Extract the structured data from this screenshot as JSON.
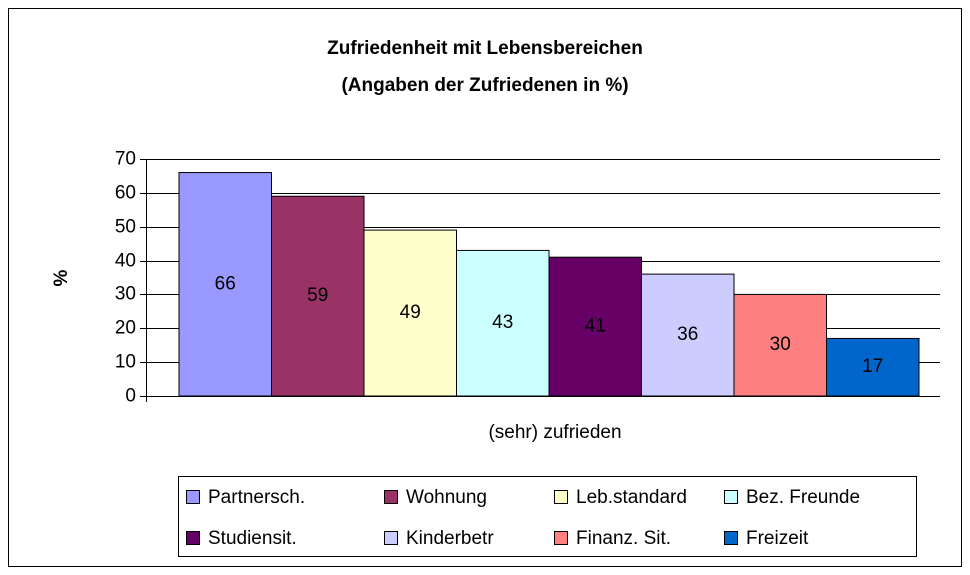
{
  "chart_data": {
    "type": "bar",
    "title": "Zufriedenheit mit Lebensbereichen",
    "subtitle": "(Angaben der Zufriedenen in %)",
    "y_label": "%",
    "categories": [
      "(sehr) zufrieden"
    ],
    "series": [
      {
        "name": "Partnersch.",
        "color": "#9999ff",
        "values": [
          66
        ]
      },
      {
        "name": "Wohnung",
        "color": "#993366",
        "values": [
          59
        ]
      },
      {
        "name": "Leb.standard",
        "color": "#ffffcc",
        "values": [
          49
        ]
      },
      {
        "name": "Bez. Freunde",
        "color": "#ccffff",
        "values": [
          43
        ]
      },
      {
        "name": "Studiensit.",
        "color": "#660066",
        "values": [
          41
        ]
      },
      {
        "name": "Kinderbetr",
        "color": "#ccccff",
        "values": [
          36
        ]
      },
      {
        "name": "Finanz. Sit.",
        "color": "#ff8080",
        "values": [
          30
        ]
      },
      {
        "name": "Freizeit",
        "color": "#0066cc",
        "values": [
          17
        ]
      }
    ],
    "ylim": [
      0,
      70
    ],
    "yticks": [
      0,
      10,
      20,
      30,
      40,
      50,
      60,
      70
    ],
    "grid": true,
    "legend": "bottom"
  }
}
